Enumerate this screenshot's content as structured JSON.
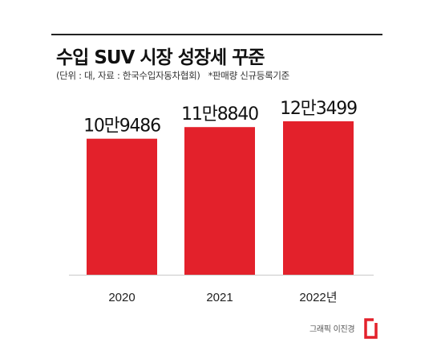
{
  "header": {
    "title": "수입 SUV 시장 성장세 꾸준",
    "source": "(단위 : 대, 자료 : 한국수입자동차협회)",
    "note": "*판매량 신규등록기준"
  },
  "credit": {
    "text": "그래픽 이진경",
    "logo_icon": "red-bracket-logo-icon",
    "logo_color": "#e3212b"
  },
  "colors": {
    "bar": "#e3212b",
    "axis": "#c9c9c9"
  },
  "chart_data": {
    "type": "bar",
    "title": "수입 SUV 시장 성장세 꾸준",
    "categories": [
      "2020",
      "2021",
      "2022년"
    ],
    "values": [
      109486,
      118840,
      123499
    ],
    "value_labels": [
      "10만9486",
      "11만8840",
      "12만3499"
    ],
    "ylim": [
      0,
      123499
    ],
    "grid": false,
    "legend": "none"
  }
}
